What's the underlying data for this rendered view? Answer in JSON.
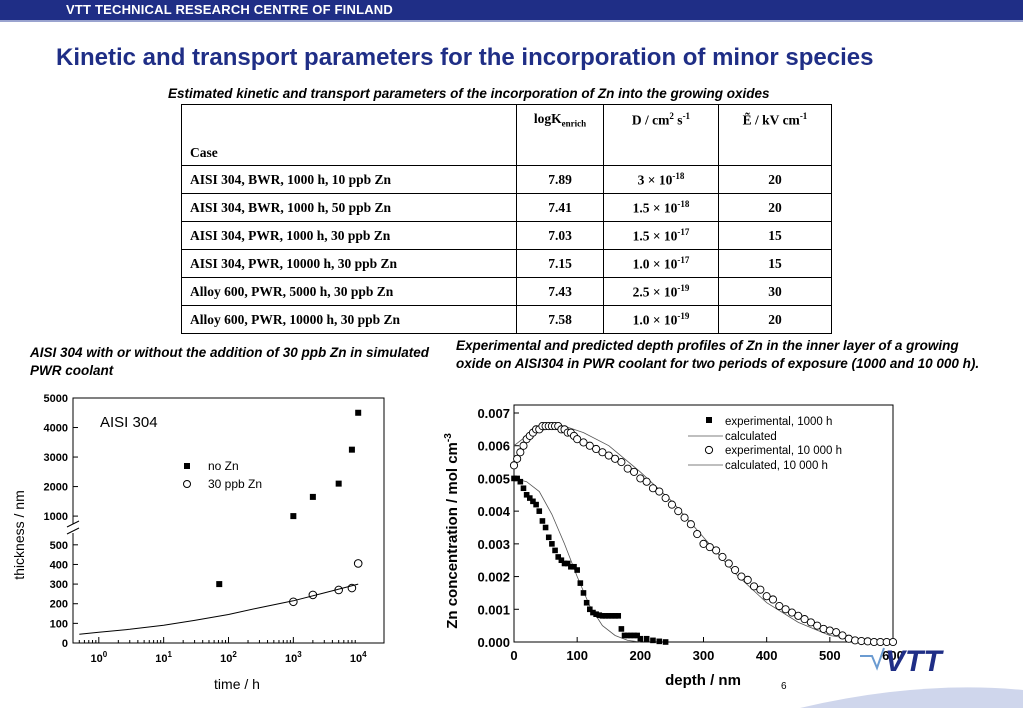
{
  "header": {
    "org": "VTT TECHNICAL RESEARCH CENTRE OF FINLAND",
    "title": "Kinetic and transport parameters for the incorporation of minor species"
  },
  "table": {
    "caption": "Estimated kinetic and transport parameters of the incorporation of Zn into the growing oxides",
    "col_case": "Case",
    "col_logk": "logK",
    "col_logk_sub": "enrich",
    "col_d": "D / cm",
    "col_d_sup1": "2",
    "col_d_mid": " s",
    "col_d_sup2": "-1",
    "col_e": "Ẽ / kV cm",
    "col_e_sup": "-1",
    "rows": [
      {
        "case": "AISI 304, BWR, 1000 h, 10 ppb Zn",
        "logk": "7.89",
        "d_mant": "3",
        "d_exp": "-18",
        "e": "20"
      },
      {
        "case": "AISI 304, BWR, 1000 h, 50 ppb Zn",
        "logk": "7.41",
        "d_mant": "1.5",
        "d_exp": "-18",
        "e": "20"
      },
      {
        "case": "AISI 304, PWR, 1000 h, 30 ppb Zn",
        "logk": "7.03",
        "d_mant": "1.5",
        "d_exp": "-17",
        "e": "15"
      },
      {
        "case": "AISI 304, PWR, 10000 h, 30 ppb Zn",
        "logk": "7.15",
        "d_mant": "1.0",
        "d_exp": "-17",
        "e": "15"
      },
      {
        "case": "Alloy 600, PWR, 5000 h, 30 ppb Zn",
        "logk": "7.43",
        "d_mant": "2.5",
        "d_exp": "-19",
        "e": "30"
      },
      {
        "case": "Alloy 600, PWR, 10000 h, 30 ppb Zn",
        "logk": "7.58",
        "d_mant": "1.0",
        "d_exp": "-19",
        "e": "20"
      }
    ],
    "times_sym": "×",
    "ten": "10"
  },
  "captions": {
    "left": "AISI 304 with or without the addition of 30 ppb Zn in simulated PWR coolant",
    "right": "Experimental and predicted depth profiles of Zn in the inner layer of a growing oxide on AISI304 in PWR coolant for two periods of exposure (1000 and 10 000 h)."
  },
  "page_number": "6",
  "logo_text": "VTT",
  "colors": {
    "brand_blue": "#1f2e86",
    "bar_light": "#9aa3cf"
  },
  "chart_data": [
    {
      "type": "scatter",
      "title": "AISI 304",
      "xlabel": "time / h",
      "ylabel": "thickness / nm",
      "x_scale": "log",
      "xlim": [
        0.4,
        25000
      ],
      "x_ticks": [
        {
          "v": 1,
          "base": "10",
          "exp": "0"
        },
        {
          "v": 10,
          "base": "10",
          "exp": "1"
        },
        {
          "v": 100,
          "base": "10",
          "exp": "2"
        },
        {
          "v": 1000,
          "base": "10",
          "exp": "3"
        },
        {
          "v": 10000,
          "base": "10",
          "exp": "4"
        }
      ],
      "y_axis_break": true,
      "ylim_lower": [
        0,
        550
      ],
      "ylim_upper": [
        800,
        5000
      ],
      "y_ticks_lower": [
        "0",
        "100",
        "200",
        "300",
        "400",
        "500"
      ],
      "y_ticks_upper": [
        "1000",
        "2000",
        "3000",
        "4000",
        "5000"
      ],
      "legend": [
        "no Zn",
        "30 ppb Zn"
      ],
      "series": [
        {
          "name": "no Zn",
          "marker": "filled-square",
          "points": [
            [
              72,
              300
            ],
            [
              1000,
              1000
            ],
            [
              2000,
              1650
            ],
            [
              5000,
              2100
            ],
            [
              8000,
              3250
            ],
            [
              10000,
              4500
            ]
          ]
        },
        {
          "name": "30 ppb Zn",
          "marker": "open-circle",
          "points": [
            [
              1000,
              210
            ],
            [
              2000,
              245
            ],
            [
              5000,
              270
            ],
            [
              8000,
              280
            ],
            [
              10000,
              405
            ]
          ]
        },
        {
          "name": "",
          "marker": "line",
          "points": [
            [
              0.5,
              45
            ],
            [
              1,
              55
            ],
            [
              3,
              70
            ],
            [
              10,
              90
            ],
            [
              30,
              115
            ],
            [
              100,
              145
            ],
            [
              300,
              180
            ],
            [
              1000,
              215
            ],
            [
              3000,
              255
            ],
            [
              10000,
              300
            ]
          ]
        }
      ]
    },
    {
      "type": "line",
      "xlabel": "depth / nm",
      "ylabel": "Zn concentration / mol cm",
      "ylabel_sup": "-3",
      "xlim": [
        0,
        600
      ],
      "ylim": [
        0,
        0.007
      ],
      "x_ticks": [
        "0",
        "100",
        "200",
        "300",
        "400",
        "500",
        "600"
      ],
      "y_ticks": [
        "0.000",
        "0.001",
        "0.002",
        "0.003",
        "0.004",
        "0.005",
        "0.006",
        "0.007"
      ],
      "legend_placement": "top-right",
      "series": [
        {
          "name": "experimental, 1000 h",
          "marker": "filled-square",
          "points": [
            [
              0,
              0.005
            ],
            [
              5,
              0.005
            ],
            [
              10,
              0.0049
            ],
            [
              15,
              0.0047
            ],
            [
              20,
              0.0045
            ],
            [
              25,
              0.0044
            ],
            [
              30,
              0.0043
            ],
            [
              35,
              0.0042
            ],
            [
              40,
              0.004
            ],
            [
              45,
              0.0037
            ],
            [
              50,
              0.0035
            ],
            [
              55,
              0.0032
            ],
            [
              60,
              0.003
            ],
            [
              65,
              0.0028
            ],
            [
              70,
              0.0026
            ],
            [
              75,
              0.0025
            ],
            [
              80,
              0.0024
            ],
            [
              85,
              0.0024
            ],
            [
              90,
              0.0023
            ],
            [
              95,
              0.0023
            ],
            [
              100,
              0.0022
            ],
            [
              105,
              0.0018
            ],
            [
              110,
              0.0015
            ],
            [
              115,
              0.0012
            ],
            [
              120,
              0.001
            ],
            [
              125,
              0.0009
            ],
            [
              130,
              0.00085
            ],
            [
              135,
              0.00082
            ],
            [
              140,
              0.0008
            ],
            [
              145,
              0.0008
            ],
            [
              150,
              0.0008
            ],
            [
              155,
              0.0008
            ],
            [
              160,
              0.0008
            ],
            [
              165,
              0.0008
            ],
            [
              170,
              0.0004
            ],
            [
              175,
              0.0002
            ],
            [
              180,
              0.0002
            ],
            [
              185,
              0.0002
            ],
            [
              190,
              0.0002
            ],
            [
              195,
              0.0002
            ],
            [
              200,
              0.0001
            ],
            [
              210,
              0.0001
            ],
            [
              220,
              5e-05
            ],
            [
              230,
              2e-05
            ],
            [
              240,
              0.0
            ]
          ]
        },
        {
          "name": "calculated",
          "marker": "line-1000",
          "points": [
            [
              0,
              0.005
            ],
            [
              20,
              0.0049
            ],
            [
              40,
              0.0046
            ],
            [
              60,
              0.0039
            ],
            [
              80,
              0.003
            ],
            [
              100,
              0.002
            ],
            [
              120,
              0.0011
            ],
            [
              140,
              0.0005
            ],
            [
              160,
              0.0002
            ],
            [
              180,
              5e-05
            ],
            [
              200,
              0.0
            ]
          ]
        },
        {
          "name": "experimental, 10 000 h",
          "marker": "open-circle",
          "points": [
            [
              0,
              0.0054
            ],
            [
              5,
              0.0056
            ],
            [
              10,
              0.0058
            ],
            [
              15,
              0.006
            ],
            [
              20,
              0.0062
            ],
            [
              25,
              0.0063
            ],
            [
              30,
              0.0064
            ],
            [
              35,
              0.0065
            ],
            [
              40,
              0.0065
            ],
            [
              45,
              0.0066
            ],
            [
              50,
              0.0066
            ],
            [
              55,
              0.0066
            ],
            [
              60,
              0.0066
            ],
            [
              65,
              0.0066
            ],
            [
              70,
              0.0066
            ],
            [
              75,
              0.0065
            ],
            [
              80,
              0.0065
            ],
            [
              85,
              0.0064
            ],
            [
              90,
              0.0064
            ],
            [
              95,
              0.0063
            ],
            [
              100,
              0.0062
            ],
            [
              110,
              0.0061
            ],
            [
              120,
              0.006
            ],
            [
              130,
              0.0059
            ],
            [
              140,
              0.0058
            ],
            [
              150,
              0.0057
            ],
            [
              160,
              0.0056
            ],
            [
              170,
              0.0055
            ],
            [
              180,
              0.0053
            ],
            [
              190,
              0.0052
            ],
            [
              200,
              0.005
            ],
            [
              210,
              0.0049
            ],
            [
              220,
              0.0047
            ],
            [
              230,
              0.0046
            ],
            [
              240,
              0.0044
            ],
            [
              250,
              0.0042
            ],
            [
              260,
              0.004
            ],
            [
              270,
              0.0038
            ],
            [
              280,
              0.0036
            ],
            [
              290,
              0.0033
            ],
            [
              300,
              0.003
            ],
            [
              310,
              0.0029
            ],
            [
              320,
              0.0028
            ],
            [
              330,
              0.0026
            ],
            [
              340,
              0.0024
            ],
            [
              350,
              0.0022
            ],
            [
              360,
              0.002
            ],
            [
              370,
              0.0019
            ],
            [
              380,
              0.0017
            ],
            [
              390,
              0.0016
            ],
            [
              400,
              0.0014
            ],
            [
              410,
              0.0013
            ],
            [
              420,
              0.0011
            ],
            [
              430,
              0.001
            ],
            [
              440,
              0.0009
            ],
            [
              450,
              0.0008
            ],
            [
              460,
              0.0007
            ],
            [
              470,
              0.0006
            ],
            [
              480,
              0.0005
            ],
            [
              490,
              0.0004
            ],
            [
              500,
              0.00035
            ],
            [
              510,
              0.0003
            ],
            [
              520,
              0.0002
            ],
            [
              530,
              0.0001
            ],
            [
              540,
              5e-05
            ],
            [
              550,
              3e-05
            ],
            [
              560,
              2e-05
            ],
            [
              570,
              0.0
            ],
            [
              580,
              0.0
            ],
            [
              590,
              0.0
            ],
            [
              600,
              0.0
            ]
          ]
        },
        {
          "name": "calculated, 10 000 h",
          "marker": "line-10000",
          "points": [
            [
              0,
              0.006
            ],
            [
              20,
              0.0063
            ],
            [
              50,
              0.0065
            ],
            [
              80,
              0.0066
            ],
            [
              110,
              0.0064
            ],
            [
              150,
              0.006
            ],
            [
              200,
              0.0052
            ],
            [
              250,
              0.0043
            ],
            [
              300,
              0.0032
            ],
            [
              350,
              0.0021
            ],
            [
              400,
              0.0012
            ],
            [
              450,
              0.0006
            ],
            [
              500,
              0.0002
            ],
            [
              550,
              5e-05
            ],
            [
              600,
              0.0
            ]
          ]
        }
      ]
    }
  ]
}
